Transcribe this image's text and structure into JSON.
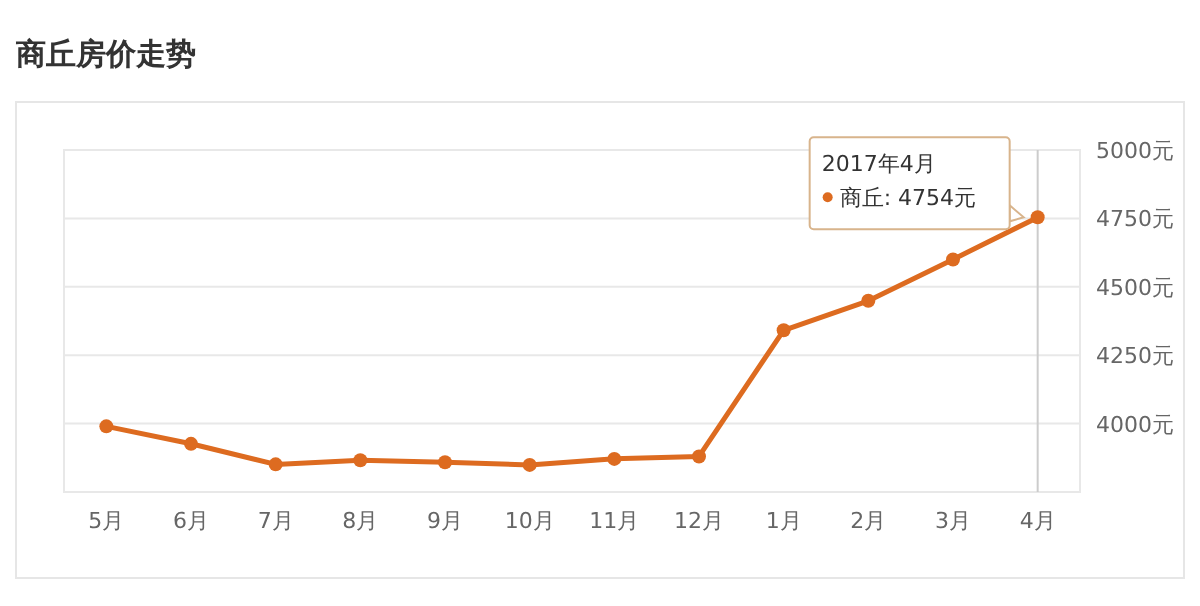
{
  "chart_data": {
    "type": "line",
    "title": "商丘房价走势",
    "categories": [
      "5月",
      "6月",
      "7月",
      "8月",
      "9月",
      "10月",
      "11月",
      "12月",
      "1月",
      "2月",
      "3月",
      "4月"
    ],
    "series": [
      {
        "color": "#dd6b20",
        "values": [
          3990,
          3926,
          3851,
          3866,
          3859,
          3849,
          3871,
          3880,
          4341,
          4449,
          4600,
          4754
        ]
      }
    ],
    "ylim": [
      3750,
      5000
    ],
    "yticks": [
      {
        "value": 4000,
        "label": "4000元"
      },
      {
        "value": 4250,
        "label": "4250元"
      },
      {
        "value": 4500,
        "label": "4500元"
      },
      {
        "value": 4750,
        "label": "4750元"
      },
      {
        "value": 5000,
        "label": "5000元"
      }
    ],
    "grid": "y",
    "marker": "circle",
    "line_style": "solid",
    "ref_lines": [
      {
        "axis": "x",
        "value": "4月",
        "color": "#cccccc"
      }
    ],
    "annotations": [
      "2017年4月",
      "商丘: 4754元"
    ]
  }
}
